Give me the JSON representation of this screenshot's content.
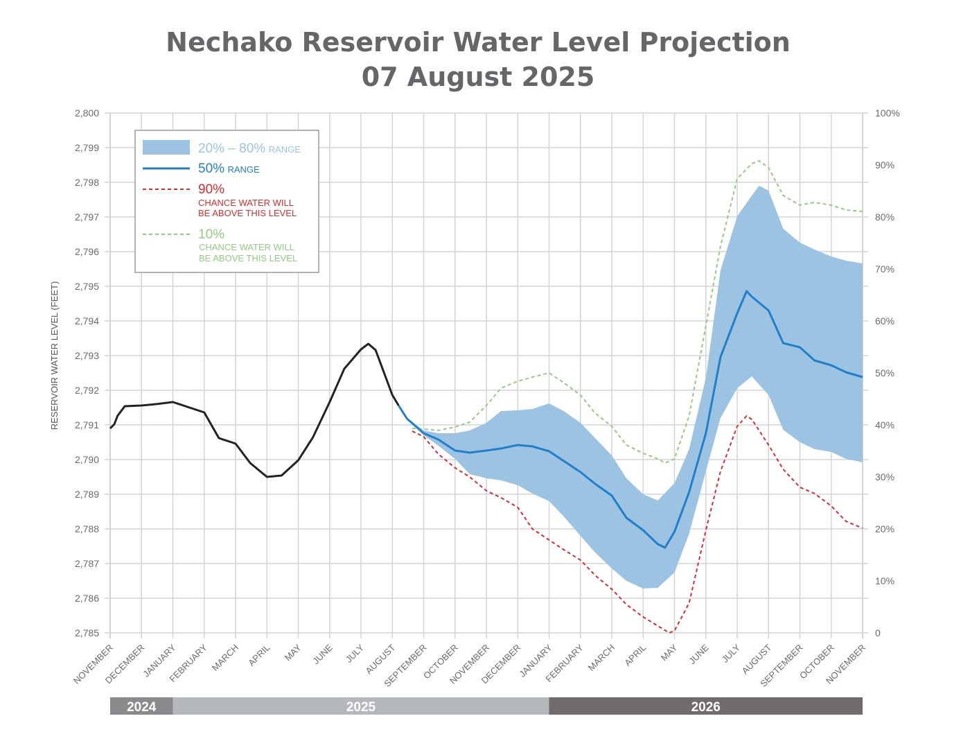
{
  "chart_data": {
    "type": "line",
    "title": "Nechako Reservoir Water Level Projection",
    "subtitle": "07 August 2025",
    "ylabel": "RESERVOIR WATER LEVEL (FEET)",
    "ylim": [
      2785,
      2800
    ],
    "y_ticks": [
      "2,785",
      "2,786",
      "2,787",
      "2,788",
      "2,789",
      "2,790",
      "2,791",
      "2,792",
      "2,793",
      "2,794",
      "2,795",
      "2,796",
      "2,797",
      "2,798",
      "2,799",
      "2,800"
    ],
    "y2_ticks": [
      "0",
      "10%",
      "20%",
      "30%",
      "40%",
      "50%",
      "60%",
      "70%",
      "80%",
      "90%",
      "100%"
    ],
    "xlim": [
      "2024-11-01",
      "2026-11-01"
    ],
    "x_ticks": [
      "NOVEMBER",
      "DECEMBER",
      "JANUARY",
      "FEBRUARY",
      "MARCH",
      "APRIL",
      "MAY",
      "JUNE",
      "JULY",
      "AUGUST",
      "SEPTEMBER",
      "OCTOBER",
      "NOVEMBER",
      "DECEMBER",
      "JANUARY",
      "FEBRUARY",
      "MARCH",
      "APRIL",
      "MAY",
      "JUNE",
      "JULY",
      "AUGUST",
      "SEPTEMBER",
      "OCTOBER",
      "NOVEMBER"
    ],
    "years": [
      {
        "label": "2024",
        "from": "2024-11-01",
        "to": "2025-01-01",
        "color": "#8a8a8c"
      },
      {
        "label": "2025",
        "from": "2025-01-01",
        "to": "2026-01-01",
        "color": "#b5b8ba"
      },
      {
        "label": "2026",
        "from": "2026-01-01",
        "to": "2026-11-01",
        "color": "#706c6d"
      }
    ],
    "grid": true,
    "legend_placement": "top-left",
    "legend": {
      "band": {
        "big": "20% – 80%",
        "small": "RANGE"
      },
      "median": {
        "big": "50%",
        "small": "RANGE"
      },
      "p90": {
        "big": "90%",
        "line1": "CHANCE WATER WILL",
        "line2": "BE ABOVE THIS LEVEL"
      },
      "p10": {
        "big": "10%",
        "line1": "CHANCE WATER WILL",
        "line2": "BE ABOVE THIS LEVEL"
      }
    },
    "colors": {
      "observed": "#222222",
      "band": "#9dc3e3",
      "median": "#1f7fc8",
      "p90": "#e02a2a",
      "p10": "#8fcf7d",
      "grid": "#d4d4d6"
    },
    "observed": [
      [
        "2024-11-01",
        2790.9
      ],
      [
        "2024-11-05",
        2791.02
      ],
      [
        "2024-11-08",
        2791.26
      ],
      [
        "2024-11-15",
        2791.54
      ],
      [
        "2024-12-01",
        2791.56
      ],
      [
        "2024-12-15",
        2791.6
      ],
      [
        "2025-01-01",
        2791.66
      ],
      [
        "2025-01-15",
        2791.52
      ],
      [
        "2025-02-01",
        2791.36
      ],
      [
        "2025-02-15",
        2790.62
      ],
      [
        "2025-03-01",
        2790.46
      ],
      [
        "2025-03-15",
        2789.9
      ],
      [
        "2025-04-01",
        2789.5
      ],
      [
        "2025-04-15",
        2789.54
      ],
      [
        "2025-05-01",
        2789.98
      ],
      [
        "2025-05-15",
        2790.64
      ],
      [
        "2025-06-01",
        2791.66
      ],
      [
        "2025-06-15",
        2792.62
      ],
      [
        "2025-07-01",
        2793.18
      ],
      [
        "2025-07-08",
        2793.34
      ],
      [
        "2025-07-15",
        2793.16
      ],
      [
        "2025-08-01",
        2791.86
      ],
      [
        "2025-08-07",
        2791.56
      ]
    ],
    "median": [
      [
        "2025-08-07",
        2791.56
      ],
      [
        "2025-08-15",
        2791.18
      ],
      [
        "2025-09-01",
        2790.76
      ],
      [
        "2025-09-15",
        2790.58
      ],
      [
        "2025-10-01",
        2790.26
      ],
      [
        "2025-10-15",
        2790.2
      ],
      [
        "2025-11-01",
        2790.26
      ],
      [
        "2025-11-15",
        2790.32
      ],
      [
        "2025-12-01",
        2790.42
      ],
      [
        "2025-12-15",
        2790.38
      ],
      [
        "2026-01-01",
        2790.24
      ],
      [
        "2026-01-15",
        2789.96
      ],
      [
        "2026-02-01",
        2789.64
      ],
      [
        "2026-02-15",
        2789.3
      ],
      [
        "2026-03-01",
        2788.96
      ],
      [
        "2026-03-15",
        2788.32
      ],
      [
        "2026-04-01",
        2787.96
      ],
      [
        "2026-04-15",
        2787.56
      ],
      [
        "2026-04-22",
        2787.46
      ],
      [
        "2026-05-01",
        2787.92
      ],
      [
        "2026-05-15",
        2789.06
      ],
      [
        "2026-06-01",
        2790.76
      ],
      [
        "2026-06-15",
        2792.96
      ],
      [
        "2026-07-01",
        2794.22
      ],
      [
        "2026-07-10",
        2794.86
      ],
      [
        "2026-07-15",
        2794.7
      ],
      [
        "2026-08-01",
        2794.3
      ],
      [
        "2026-08-15",
        2793.36
      ],
      [
        "2026-09-01",
        2793.24
      ],
      [
        "2026-09-15",
        2792.86
      ],
      [
        "2026-10-01",
        2792.72
      ],
      [
        "2026-10-15",
        2792.52
      ],
      [
        "2026-11-01",
        2792.38
      ]
    ],
    "p80": [
      [
        "2025-08-07",
        2791.56
      ],
      [
        "2025-08-15",
        2791.2
      ],
      [
        "2025-09-01",
        2790.84
      ],
      [
        "2025-09-15",
        2790.76
      ],
      [
        "2025-10-01",
        2790.76
      ],
      [
        "2025-10-15",
        2790.84
      ],
      [
        "2025-11-01",
        2791.06
      ],
      [
        "2025-11-15",
        2791.4
      ],
      [
        "2025-12-01",
        2791.42
      ],
      [
        "2025-12-15",
        2791.46
      ],
      [
        "2026-01-01",
        2791.62
      ],
      [
        "2026-01-15",
        2791.4
      ],
      [
        "2026-02-01",
        2791.06
      ],
      [
        "2026-02-15",
        2790.62
      ],
      [
        "2026-03-01",
        2790.12
      ],
      [
        "2026-03-15",
        2789.46
      ],
      [
        "2026-04-01",
        2789.0
      ],
      [
        "2026-04-15",
        2788.82
      ],
      [
        "2026-05-01",
        2789.32
      ],
      [
        "2026-05-15",
        2790.3
      ],
      [
        "2026-06-01",
        2792.36
      ],
      [
        "2026-06-15",
        2795.46
      ],
      [
        "2026-07-01",
        2797.02
      ],
      [
        "2026-07-15",
        2797.62
      ],
      [
        "2026-07-22",
        2797.9
      ],
      [
        "2026-08-01",
        2797.76
      ],
      [
        "2026-08-15",
        2796.66
      ],
      [
        "2026-09-01",
        2796.26
      ],
      [
        "2026-09-15",
        2796.06
      ],
      [
        "2026-10-01",
        2795.86
      ],
      [
        "2026-10-15",
        2795.74
      ],
      [
        "2026-11-01",
        2795.66
      ]
    ],
    "p20": [
      [
        "2025-08-07",
        2791.56
      ],
      [
        "2025-08-15",
        2791.16
      ],
      [
        "2025-09-01",
        2790.7
      ],
      [
        "2025-09-15",
        2790.4
      ],
      [
        "2025-10-01",
        2790.02
      ],
      [
        "2025-10-15",
        2789.58
      ],
      [
        "2025-11-01",
        2789.46
      ],
      [
        "2025-11-15",
        2789.4
      ],
      [
        "2025-12-01",
        2789.26
      ],
      [
        "2025-12-15",
        2789.02
      ],
      [
        "2026-01-01",
        2788.8
      ],
      [
        "2026-01-15",
        2788.36
      ],
      [
        "2026-02-01",
        2787.8
      ],
      [
        "2026-02-15",
        2787.32
      ],
      [
        "2026-03-01",
        2786.86
      ],
      [
        "2026-03-15",
        2786.5
      ],
      [
        "2026-04-01",
        2786.28
      ],
      [
        "2026-04-15",
        2786.3
      ],
      [
        "2026-05-01",
        2786.74
      ],
      [
        "2026-05-15",
        2787.86
      ],
      [
        "2026-06-01",
        2789.66
      ],
      [
        "2026-06-15",
        2791.2
      ],
      [
        "2026-07-01",
        2792.06
      ],
      [
        "2026-07-15",
        2792.4
      ],
      [
        "2026-08-01",
        2791.86
      ],
      [
        "2026-08-15",
        2790.86
      ],
      [
        "2026-09-01",
        2790.5
      ],
      [
        "2026-09-15",
        2790.3
      ],
      [
        "2026-10-01",
        2790.22
      ],
      [
        "2026-10-15",
        2790.02
      ],
      [
        "2026-11-01",
        2789.92
      ]
    ],
    "p10": [
      [
        "2025-08-20",
        2790.9
      ],
      [
        "2025-09-01",
        2790.88
      ],
      [
        "2025-09-15",
        2790.84
      ],
      [
        "2025-10-01",
        2790.94
      ],
      [
        "2025-10-15",
        2791.08
      ],
      [
        "2025-11-01",
        2791.56
      ],
      [
        "2025-11-15",
        2792.06
      ],
      [
        "2025-12-01",
        2792.26
      ],
      [
        "2025-12-15",
        2792.38
      ],
      [
        "2026-01-01",
        2792.5
      ],
      [
        "2026-01-15",
        2792.22
      ],
      [
        "2026-02-01",
        2791.86
      ],
      [
        "2026-02-15",
        2791.34
      ],
      [
        "2026-03-01",
        2790.96
      ],
      [
        "2026-03-15",
        2790.42
      ],
      [
        "2026-04-01",
        2790.18
      ],
      [
        "2026-04-15",
        2790.02
      ],
      [
        "2026-04-22",
        2789.9
      ],
      [
        "2026-05-01",
        2790.02
      ],
      [
        "2026-05-15",
        2791.26
      ],
      [
        "2026-06-01",
        2793.86
      ],
      [
        "2026-06-15",
        2796.16
      ],
      [
        "2026-07-01",
        2798.1
      ],
      [
        "2026-07-15",
        2798.54
      ],
      [
        "2026-07-22",
        2798.62
      ],
      [
        "2026-08-01",
        2798.42
      ],
      [
        "2026-08-15",
        2797.62
      ],
      [
        "2026-09-01",
        2797.34
      ],
      [
        "2026-09-15",
        2797.42
      ],
      [
        "2026-10-01",
        2797.34
      ],
      [
        "2026-10-15",
        2797.2
      ],
      [
        "2026-11-01",
        2797.16
      ]
    ],
    "p90": [
      [
        "2025-08-20",
        2790.82
      ],
      [
        "2025-09-01",
        2790.66
      ],
      [
        "2025-09-15",
        2790.16
      ],
      [
        "2025-10-01",
        2789.76
      ],
      [
        "2025-10-15",
        2789.5
      ],
      [
        "2025-11-01",
        2789.1
      ],
      [
        "2025-11-15",
        2788.9
      ],
      [
        "2025-12-01",
        2788.62
      ],
      [
        "2025-12-15",
        2788.0
      ],
      [
        "2026-01-01",
        2787.68
      ],
      [
        "2026-01-15",
        2787.4
      ],
      [
        "2026-02-01",
        2787.1
      ],
      [
        "2026-02-15",
        2786.66
      ],
      [
        "2026-03-01",
        2786.26
      ],
      [
        "2026-03-15",
        2785.82
      ],
      [
        "2026-04-01",
        2785.46
      ],
      [
        "2026-04-15",
        2785.2
      ],
      [
        "2026-04-26",
        2785.0
      ],
      [
        "2026-05-01",
        2785.06
      ],
      [
        "2026-05-15",
        2785.86
      ],
      [
        "2026-06-01",
        2787.96
      ],
      [
        "2026-06-15",
        2789.66
      ],
      [
        "2026-07-01",
        2790.96
      ],
      [
        "2026-07-10",
        2791.26
      ],
      [
        "2026-07-15",
        2791.16
      ],
      [
        "2026-08-01",
        2790.42
      ],
      [
        "2026-08-15",
        2789.72
      ],
      [
        "2026-09-01",
        2789.2
      ],
      [
        "2026-09-15",
        2789.02
      ],
      [
        "2026-10-01",
        2788.66
      ],
      [
        "2026-10-15",
        2788.22
      ],
      [
        "2026-11-01",
        2788.02
      ]
    ]
  }
}
